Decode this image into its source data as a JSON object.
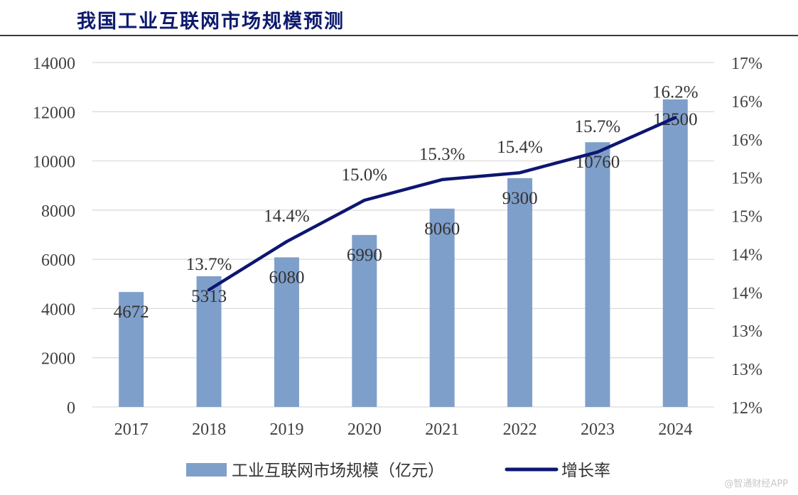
{
  "header": {
    "title": "我国工业互联网市场规模预测"
  },
  "watermark": "@智通财经APP",
  "colors": {
    "bar": "#7f9fcb",
    "line": "#0d1670",
    "grid": "#d9d9d9",
    "title": "#0d1a6e"
  },
  "chart_data": {
    "type": "bar",
    "title": "我国工业互联网市场规模预测",
    "categories": [
      "2017",
      "2018",
      "2019",
      "2020",
      "2021",
      "2022",
      "2023",
      "2024"
    ],
    "series": [
      {
        "name": "工业互联网市场规模（亿元）",
        "type": "bar",
        "axis": "left",
        "values": [
          4672,
          5313,
          6080,
          6990,
          8060,
          9300,
          10760,
          12500
        ],
        "labels": [
          "4672",
          "5313",
          "6080",
          "6990",
          "8060",
          "9300",
          "10760",
          "12500"
        ]
      },
      {
        "name": "增长率",
        "type": "line",
        "axis": "right",
        "values": [
          null,
          13.7,
          14.4,
          15.0,
          15.3,
          15.4,
          15.7,
          16.2
        ],
        "labels": [
          null,
          "13.7%",
          "14.4%",
          "15.0%",
          "15.3%",
          "15.4%",
          "15.7%",
          "16.2%"
        ]
      }
    ],
    "left_axis": {
      "min": 0,
      "max": 14000,
      "step": 2000,
      "ticks": [
        "0",
        "2000",
        "4000",
        "6000",
        "8000",
        "10000",
        "12000",
        "14000"
      ]
    },
    "right_axis": {
      "min": 12,
      "max": 17,
      "ticks": [
        "12%",
        "13%",
        "13%",
        "14%",
        "14%",
        "15%",
        "15%",
        "16%",
        "16%",
        "17%"
      ]
    },
    "legend_position": "bottom",
    "grid": true
  }
}
